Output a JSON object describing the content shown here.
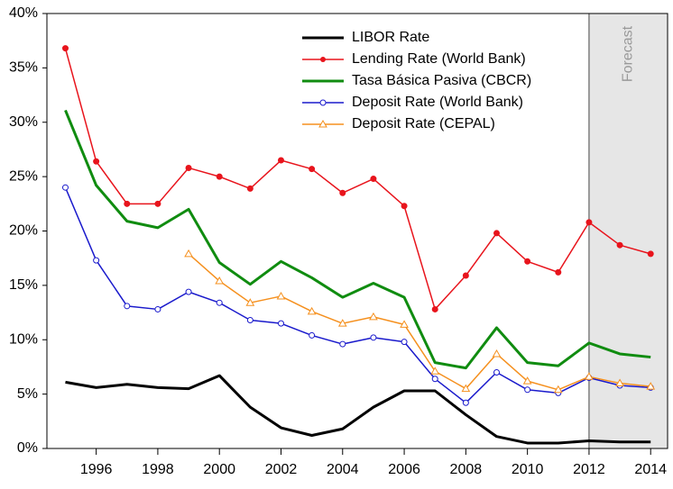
{
  "chart_data": {
    "type": "line",
    "x": [
      1995,
      1996,
      1997,
      1998,
      1999,
      2000,
      2001,
      2002,
      2003,
      2004,
      2005,
      2006,
      2007,
      2008,
      2009,
      2010,
      2011,
      2012,
      2013,
      2014
    ],
    "xlim": [
      1994.4,
      2014.55
    ],
    "xticks": [
      1996,
      1998,
      2000,
      2002,
      2004,
      2006,
      2008,
      2010,
      2012,
      2014
    ],
    "ylim": [
      0,
      40
    ],
    "yticks": [
      {
        "value": 0,
        "label": "0%"
      },
      {
        "value": 5,
        "label": "5%"
      },
      {
        "value": 10,
        "label": "10%"
      },
      {
        "value": 15,
        "label": "15%"
      },
      {
        "value": 20,
        "label": "20%"
      },
      {
        "value": 25,
        "label": "25%"
      },
      {
        "value": 30,
        "label": "30%"
      },
      {
        "value": 35,
        "label": "35%"
      },
      {
        "value": 40,
        "label": "40%"
      }
    ],
    "legend": "top-center",
    "shaded_region": {
      "x0": 2012,
      "label": "Forecast",
      "color": "#e6e6e6"
    },
    "series": [
      {
        "name": "LIBOR Rate",
        "color": "#000000",
        "width": 3,
        "marker": "none",
        "values": [
          6.1,
          5.6,
          5.9,
          5.6,
          5.5,
          6.7,
          3.8,
          1.9,
          1.2,
          1.8,
          3.8,
          5.3,
          5.3,
          3.1,
          1.1,
          0.5,
          0.5,
          0.7,
          0.6,
          0.6
        ]
      },
      {
        "name": "Lending Rate (World Bank)",
        "color": "#e8141c",
        "width": 1.5,
        "marker": "filled-circle",
        "values": [
          36.8,
          26.4,
          22.5,
          22.5,
          25.8,
          25.0,
          23.9,
          26.5,
          25.7,
          23.5,
          24.8,
          22.3,
          12.8,
          15.9,
          19.8,
          17.2,
          16.2,
          20.8,
          18.7,
          17.9
        ]
      },
      {
        "name": "Tasa Básica Pasiva (CBCR)",
        "color": "#108c10",
        "width": 3,
        "marker": "none",
        "values": [
          31.1,
          24.2,
          20.9,
          20.3,
          22.0,
          17.1,
          15.1,
          17.2,
          15.7,
          13.9,
          15.2,
          13.9,
          7.9,
          7.4,
          11.1,
          7.9,
          7.6,
          9.7,
          8.7,
          8.4
        ]
      },
      {
        "name": "Deposit Rate (World Bank)",
        "color": "#1a1acc",
        "width": 1.5,
        "marker": "open-circle",
        "values": [
          24.0,
          17.3,
          13.1,
          12.8,
          14.4,
          13.4,
          11.8,
          11.5,
          10.4,
          9.6,
          10.2,
          9.8,
          6.4,
          4.2,
          7.0,
          5.4,
          5.1,
          6.5,
          5.8,
          5.6
        ]
      },
      {
        "name": "Deposit Rate (CEPAL)",
        "color": "#f5901e",
        "width": 1.5,
        "marker": "open-triangle",
        "values": [
          null,
          null,
          null,
          null,
          17.9,
          15.4,
          13.4,
          14.0,
          12.6,
          11.5,
          12.1,
          11.4,
          7.1,
          5.5,
          8.7,
          6.2,
          5.4,
          6.6,
          6.0,
          5.7
        ]
      }
    ]
  }
}
